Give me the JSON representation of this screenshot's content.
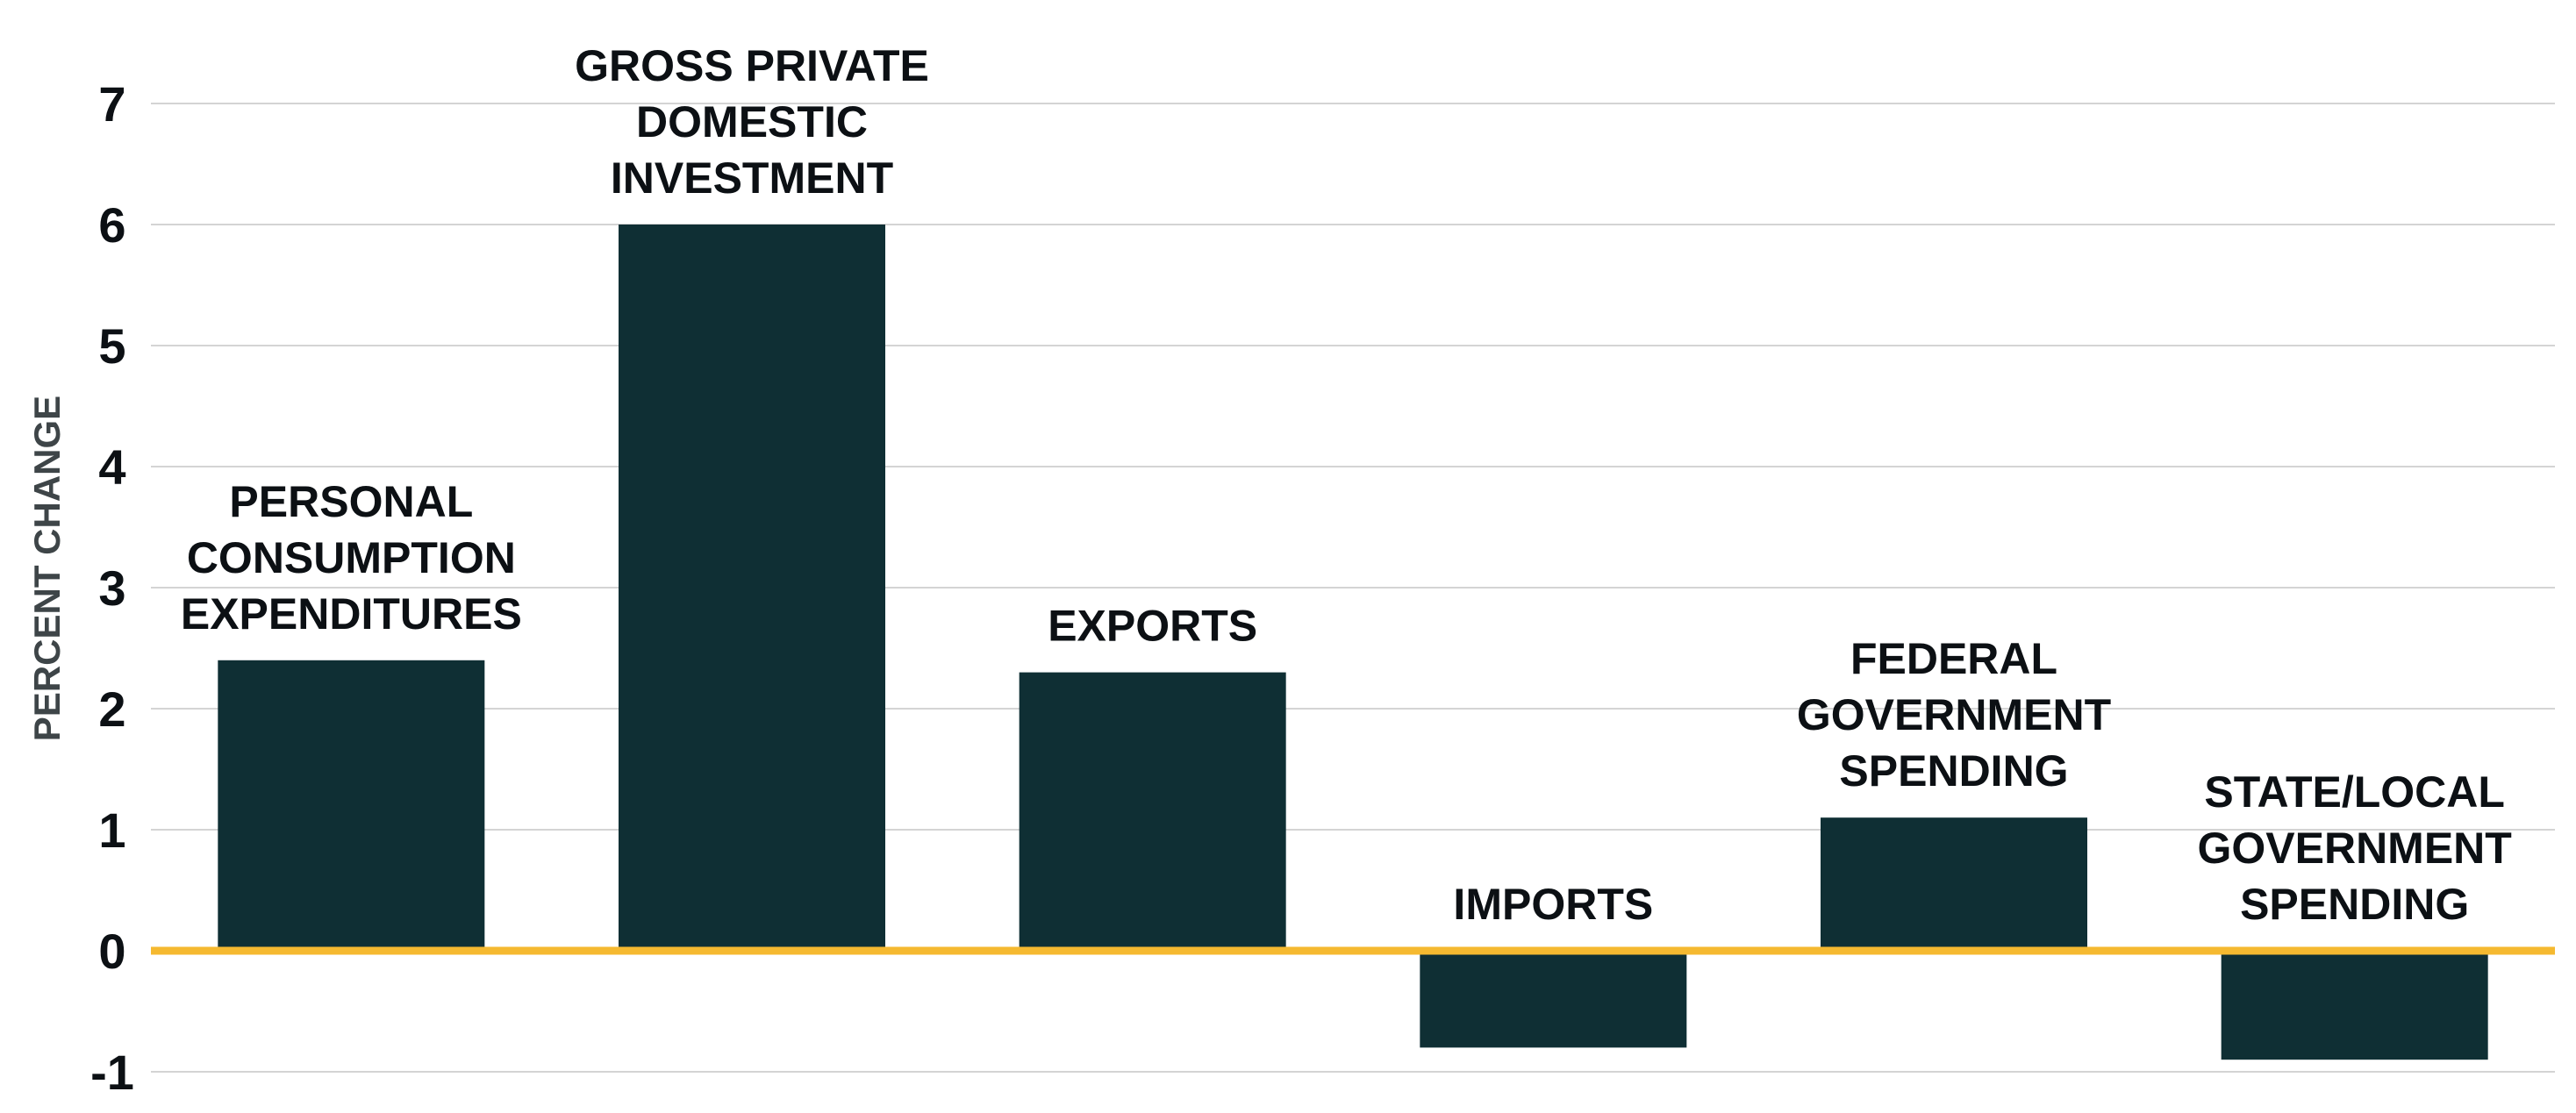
{
  "chart_data": {
    "type": "bar",
    "title": "",
    "xlabel": "",
    "ylabel": "PERCENT CHANGE",
    "ylim": [
      -1,
      7
    ],
    "yticks": [
      -1,
      0,
      1,
      2,
      3,
      4,
      5,
      6,
      7
    ],
    "grid": true,
    "categories": [
      [
        "PERSONAL",
        "CONSUMPTION",
        "EXPENDITURES"
      ],
      [
        "GROSS PRIVATE",
        "DOMESTIC",
        "INVESTMENT"
      ],
      [
        "EXPORTS"
      ],
      [
        "IMPORTS"
      ],
      [
        "FEDERAL",
        "GOVERNMENT",
        "SPENDING"
      ],
      [
        "STATE/LOCAL",
        "GOVERNMENT",
        "SPENDING"
      ]
    ],
    "values": [
      2.4,
      6.0,
      2.3,
      -0.8,
      1.1,
      -0.9
    ]
  },
  "colors": {
    "bar": "#0f2f34",
    "zero_line": "#f5b930",
    "grid": "#d4d4d4",
    "text": "#0c1014",
    "axis_title": "#3e4548"
  }
}
